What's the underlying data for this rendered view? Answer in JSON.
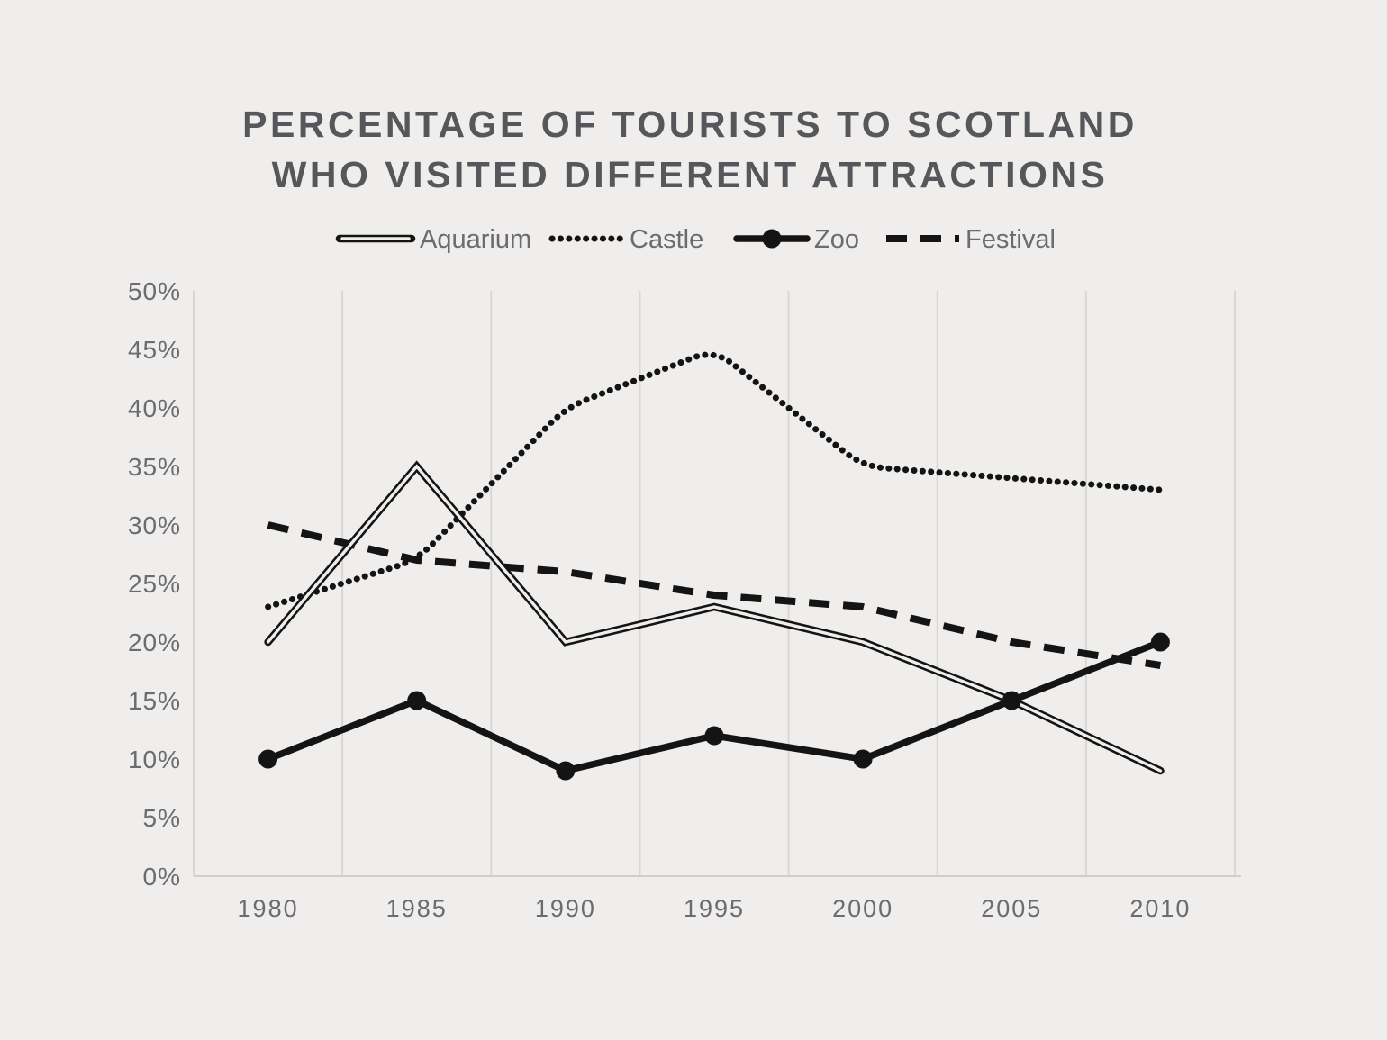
{
  "title": {
    "line1": "PERCENTAGE OF TOURISTS TO SCOTLAND",
    "line2": "WHO VISITED DIFFERENT ATTRACTIONS"
  },
  "legend": [
    {
      "id": "aquarium",
      "label": "Aquarium",
      "swatch": "double-line"
    },
    {
      "id": "castle",
      "label": "Castle",
      "swatch": "dotted-line"
    },
    {
      "id": "zoo",
      "label": "Zoo",
      "swatch": "solid-line-with-marker"
    },
    {
      "id": "festival",
      "label": "Festival",
      "swatch": "dashed-line"
    }
  ],
  "colors": {
    "background": "#efeeec",
    "line": "#141414",
    "title_text": "#56575b",
    "axis_text": "#6b6c6f",
    "gridline": "#d8d7d5",
    "axis_line": "#cfcecc"
  },
  "chart_data": {
    "type": "line",
    "title": "Percentage of tourists to Scotland who visited different attractions",
    "categories": [
      "1980",
      "1985",
      "1990",
      "1995",
      "2000",
      "2005",
      "2010"
    ],
    "series": [
      {
        "name": "Aquarium",
        "style": "double-line",
        "values": [
          20,
          35,
          20,
          23,
          20,
          15,
          9
        ]
      },
      {
        "name": "Castle",
        "style": "dotted",
        "values": [
          23,
          27,
          40,
          45,
          35,
          34,
          33
        ]
      },
      {
        "name": "Zoo",
        "style": "solid-markers",
        "values": [
          10,
          15,
          9,
          12,
          10,
          15,
          20
        ]
      },
      {
        "name": "Festival",
        "style": "dashed",
        "values": [
          30,
          27,
          26,
          24,
          23,
          20,
          18
        ]
      }
    ],
    "xlabel": "",
    "ylabel": "",
    "ylim": [
      0,
      50
    ],
    "ytick_step": 5,
    "ytick_labels": [
      "0%",
      "5%",
      "10%",
      "15%",
      "20%",
      "25%",
      "30%",
      "35%",
      "40%",
      "45%",
      "50%"
    ],
    "grid": "vertical-only",
    "legend_position": "top-center",
    "marker_series": "Zoo"
  }
}
